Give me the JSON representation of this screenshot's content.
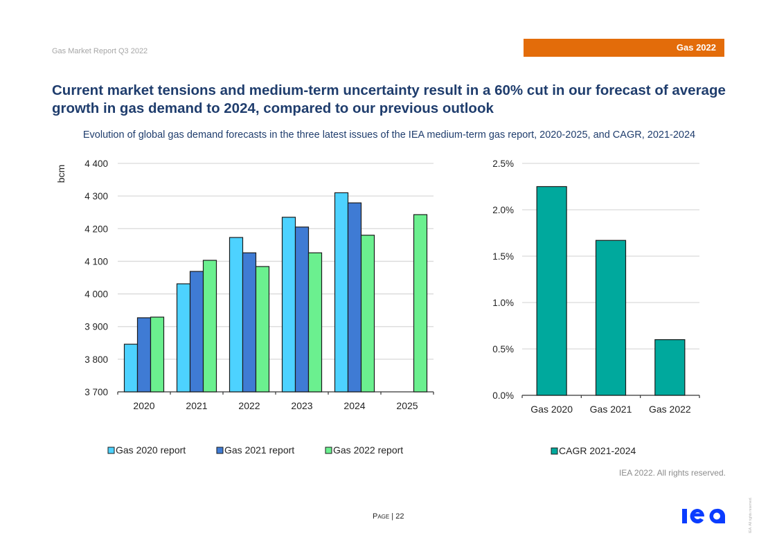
{
  "header": {
    "report_name": "Gas Market Report Q3 2022",
    "tag": "Gas 2022",
    "tag_color": "#e36c0a"
  },
  "title": "Current market tensions and medium-term uncertainty result in a 60% cut in our forecast of average growth in gas demand to 2024, compared to our previous outlook",
  "subtitle": "Evolution of global gas demand forecasts in the three latest issues of the IEA medium-term gas report, 2020-2025, and CAGR, 2021-2024",
  "chart_data": [
    {
      "type": "bar",
      "title": "",
      "xlabel": "",
      "ylabel": "bcm",
      "categories": [
        "2020",
        "2021",
        "2022",
        "2023",
        "2024",
        "2025"
      ],
      "ylim": [
        3700,
        4400
      ],
      "yticks": [
        3700,
        3800,
        3900,
        4000,
        4100,
        4200,
        4300,
        4400
      ],
      "ytick_labels": [
        "3 700",
        "3 800",
        "3 900",
        "4 000",
        "4 100",
        "4 200",
        "4 300",
        "4 400"
      ],
      "grid": true,
      "legend_position": "bottom",
      "series": [
        {
          "name": "Gas 2020 report",
          "color": "#4dd2ff",
          "values": [
            3846,
            4031,
            4173,
            4235,
            4310,
            null
          ]
        },
        {
          "name": "Gas 2021 report",
          "color": "#3f7bd4",
          "values": [
            3927,
            4069,
            4126,
            4205,
            4279,
            null
          ]
        },
        {
          "name": "Gas 2022 report",
          "color": "#6bf08f",
          "values": [
            3929,
            4103,
            4084,
            4126,
            4180,
            4243
          ]
        }
      ]
    },
    {
      "type": "bar",
      "title": "",
      "xlabel": "",
      "ylabel": "",
      "categories": [
        "Gas 2020",
        "Gas 2021",
        "Gas 2022"
      ],
      "ylim": [
        0,
        2.5
      ],
      "yticks": [
        0,
        0.5,
        1.0,
        1.5,
        2.0,
        2.5
      ],
      "ytick_labels": [
        "0.0%",
        "0.5%",
        "1.0%",
        "1.5%",
        "2.0%",
        "2.5%"
      ],
      "grid": true,
      "legend_position": "bottom",
      "series": [
        {
          "name": "CAGR 2021-2024",
          "color": "#00a99d",
          "values": [
            2.25,
            1.67,
            0.6
          ],
          "unit": "%"
        }
      ]
    }
  ],
  "footnote": "IEA 2022. All rights reserved.",
  "footer": {
    "page_label": "Page",
    "page_sep": " | ",
    "page_number": "22",
    "logo_text": "iea",
    "rights_vertical": "IEA. All rights reserved."
  }
}
